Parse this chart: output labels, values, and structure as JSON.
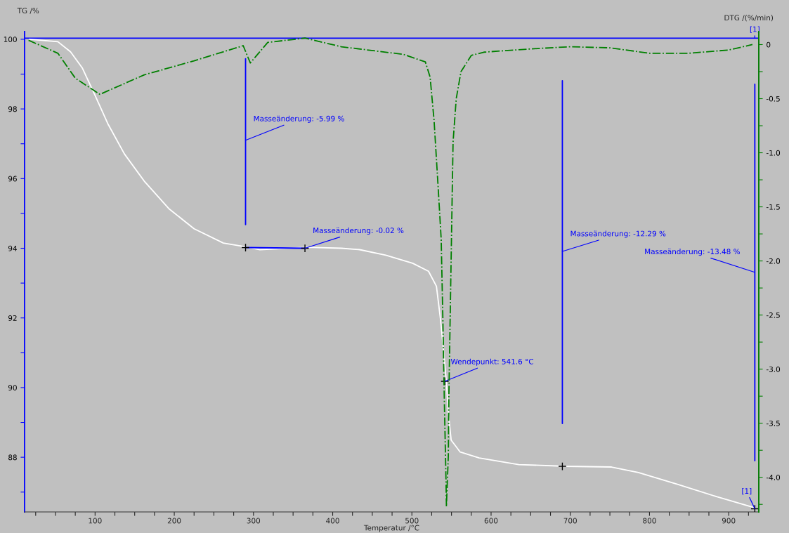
{
  "chart_data": {
    "type": "line",
    "xlabel": "Temperatur /°C",
    "ylabel": "TG /%",
    "y2label": "DTG /(%/min)",
    "xlim": [
      11,
      938
    ],
    "ylim": [
      86.43,
      100.22
    ],
    "y2lim": [
      -4.32,
      0.12
    ],
    "xticks": [
      {
        "value": 25,
        "label": null
      },
      {
        "value": 50,
        "label": null
      },
      {
        "value": 75,
        "label": null
      },
      100,
      {
        "value": 125,
        "label": null
      },
      {
        "value": 150,
        "label": null
      },
      {
        "value": 175,
        "label": null
      },
      200,
      {
        "value": 225,
        "label": null
      },
      {
        "value": 250,
        "label": null
      },
      {
        "value": 275,
        "label": null
      },
      300,
      {
        "value": 325,
        "label": null
      },
      {
        "value": 350,
        "label": null
      },
      {
        "value": 375,
        "label": null
      },
      400,
      {
        "value": 425,
        "label": null
      },
      {
        "value": 450,
        "label": null
      },
      {
        "value": 475,
        "label": null
      },
      500,
      {
        "value": 525,
        "label": null
      },
      {
        "value": 550,
        "label": null
      },
      {
        "value": 575,
        "label": null
      },
      600,
      {
        "value": 625,
        "label": null
      },
      {
        "value": 650,
        "label": null
      },
      {
        "value": 675,
        "label": null
      },
      700,
      {
        "value": 725,
        "label": null
      },
      {
        "value": 750,
        "label": null
      },
      {
        "value": 775,
        "label": null
      },
      800,
      {
        "value": 825,
        "label": null
      },
      {
        "value": 850,
        "label": null
      },
      {
        "value": 875,
        "label": null
      },
      900,
      {
        "value": 925,
        "label": null
      }
    ],
    "yticks": [
      {
        "value": 87,
        "label": null
      },
      88,
      {
        "value": 89,
        "label": null
      },
      90,
      {
        "value": 91,
        "label": null
      },
      92,
      {
        "value": 93,
        "label": null
      },
      94,
      {
        "value": 95,
        "label": null
      },
      96,
      {
        "value": 97,
        "label": null
      },
      98,
      {
        "value": 99,
        "label": null
      },
      100
    ],
    "y2ticks": [
      {
        "value": -4.25,
        "label": null
      },
      {
        "value": -4.0,
        "label": "-4.0"
      },
      {
        "value": -3.75,
        "label": null
      },
      {
        "value": -3.5,
        "label": "-3.5"
      },
      {
        "value": -3.25,
        "label": null
      },
      {
        "value": -3.0,
        "label": "-3.0"
      },
      {
        "value": -2.75,
        "label": null
      },
      {
        "value": -2.5,
        "label": "-2.5"
      },
      {
        "value": -2.25,
        "label": null
      },
      {
        "value": -2.0,
        "label": "-2.0"
      },
      {
        "value": -1.75,
        "label": null
      },
      {
        "value": -1.5,
        "label": "-1.5"
      },
      {
        "value": -1.25,
        "label": null
      },
      {
        "value": -1.0,
        "label": "-1.0"
      },
      {
        "value": -0.75,
        "label": null
      },
      {
        "value": -0.5,
        "label": "-0.5"
      },
      {
        "value": -0.25,
        "label": null
      },
      0
    ],
    "grid": false,
    "series": [
      {
        "axis": "y",
        "color": "#ffffff",
        "line_style": "solid",
        "x": [
          17,
          53,
          69,
          84,
          100,
          116,
          137,
          162,
          193,
          225,
          262,
          291,
          308,
          368,
          411,
          434,
          467,
          501,
          521,
          531,
          536,
          540,
          543.6,
          546,
          549.6,
          561,
          585,
          635,
          694,
          752,
          786,
          836,
          886,
          933
        ],
        "values": [
          100.0,
          99.93,
          99.64,
          99.17,
          98.39,
          97.58,
          96.71,
          95.93,
          95.14,
          94.56,
          94.15,
          94.04,
          93.96,
          94.03,
          94.0,
          93.96,
          93.8,
          93.57,
          93.34,
          92.91,
          91.98,
          91.05,
          90.15,
          89.27,
          88.49,
          88.15,
          87.98,
          87.79,
          87.74,
          87.72,
          87.56,
          87.22,
          86.86,
          86.55
        ]
      },
      {
        "type": "line",
        "axis": "y2",
        "color": "#008000",
        "line_style": "dashdot",
        "x": [
          16,
          53,
          75,
          106,
          162,
          225,
          287,
          296,
          318,
          365,
          411,
          489,
          517,
          523,
          528,
          533,
          537,
          539,
          541,
          543,
          543.6,
          546,
          546.7,
          549,
          552,
          556,
          562,
          575,
          591,
          650,
          700,
          750,
          800,
          850,
          900,
          930
        ],
        "values": [
          0.04,
          -0.08,
          -0.31,
          -0.46,
          -0.28,
          -0.15,
          -0.01,
          -0.17,
          0.02,
          0.06,
          -0.02,
          -0.09,
          -0.16,
          -0.3,
          -0.7,
          -1.3,
          -1.8,
          -2.5,
          -3.3,
          -4.0,
          -4.27,
          -3.8,
          -3.25,
          -2.23,
          -0.9,
          -0.5,
          -0.25,
          -0.1,
          -0.07,
          -0.04,
          -0.02,
          -0.03,
          -0.08,
          -0.08,
          -0.05,
          0.0
        ]
      },
      {
        "type": "line",
        "axis": "y",
        "color": "#0000ff",
        "line_style": "solid",
        "x": [
          290,
          290
        ],
        "values": [
          99.44,
          94.68
        ]
      },
      {
        "type": "line",
        "axis": "y",
        "color": "#0000ff",
        "line_style": "solid",
        "x": [
          290,
          365
        ],
        "values": [
          94.02,
          94.0
        ]
      },
      {
        "type": "line",
        "axis": "y",
        "color": "#0000ff",
        "line_style": "solid",
        "x": [
          690,
          690
        ],
        "values": [
          98.81,
          88.97
        ]
      },
      {
        "type": "line",
        "axis": "y",
        "color": "#0000ff",
        "line_style": "solid",
        "x": [
          933,
          933
        ],
        "values": [
          98.71,
          87.9
        ]
      },
      {
        "type": "scatter",
        "axis": "y",
        "color": "#000000",
        "marker": "cross",
        "x": [
          290,
          365,
          541.6,
          690,
          933
        ],
        "values": [
          94.02,
          94.0,
          90.18,
          87.74,
          86.52
        ]
      }
    ],
    "ref_lines": [
      {
        "axis": "y",
        "value": 100.03,
        "color": "#0000ff"
      }
    ],
    "annotations": [
      {
        "text": "Masseänderung: -5.99 %",
        "x": 290,
        "y": 97.1
      },
      {
        "text": "Masseänderung: -0.02 %",
        "x": 365,
        "y": 94.0
      },
      {
        "text": "Wendepunkt: 541.6 °C",
        "x": 541.6,
        "y": 90.18
      },
      {
        "text": "Masseänderung: -12.29 %",
        "x": 690,
        "y": 93.91
      },
      {
        "text": "Masseänderung: -13.48 %",
        "x": 933,
        "y": 93.31
      },
      {
        "text": "[1]",
        "x": 933,
        "y": 86.52
      },
      {
        "text": "[1]",
        "x": 933,
        "y": 100.03
      }
    ]
  }
}
